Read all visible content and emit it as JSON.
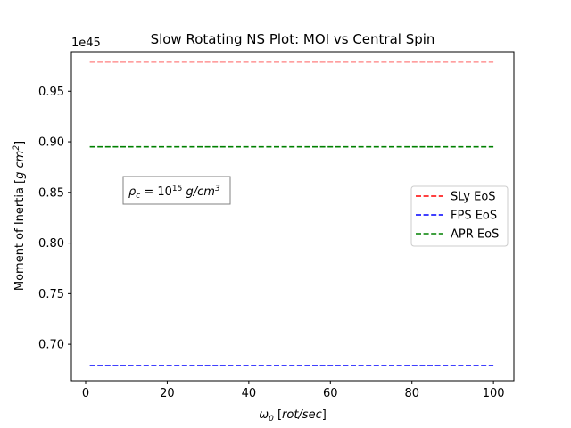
{
  "chart_data": {
    "type": "line",
    "title": "Slow Rotating NS Plot: MOI vs Central Spin",
    "xlabel": "ω₀ [rot/sec]",
    "ylabel": "Moment of Inertia [g cm²]",
    "y_offset_label": "1e45",
    "xlim": [
      -3.5,
      105
    ],
    "ylim": [
      0.664,
      0.989
    ],
    "x_ticks": [
      0,
      20,
      40,
      60,
      80,
      100
    ],
    "y_ticks": [
      0.7,
      0.75,
      0.8,
      0.85,
      0.9,
      0.95
    ],
    "x_tick_labels": [
      "0",
      "20",
      "40",
      "60",
      "80",
      "100"
    ],
    "y_tick_labels": [
      "0.70",
      "0.75",
      "0.80",
      "0.85",
      "0.90",
      "0.95"
    ],
    "grid": false,
    "legend_position": "center-right",
    "annotation": "ρc = 10¹⁵ g/cm³",
    "series": [
      {
        "name": "SLy EoS",
        "color": "#ff0000",
        "style": "dashed",
        "x": [
          1,
          100
        ],
        "y": [
          0.979,
          0.979
        ]
      },
      {
        "name": "FPS EoS",
        "color": "#0000ff",
        "style": "dashed",
        "x": [
          1,
          100
        ],
        "y": [
          0.679,
          0.679
        ]
      },
      {
        "name": "APR EoS",
        "color": "#008000",
        "style": "dashed",
        "x": [
          1,
          100
        ],
        "y": [
          0.895,
          0.895
        ]
      }
    ]
  }
}
